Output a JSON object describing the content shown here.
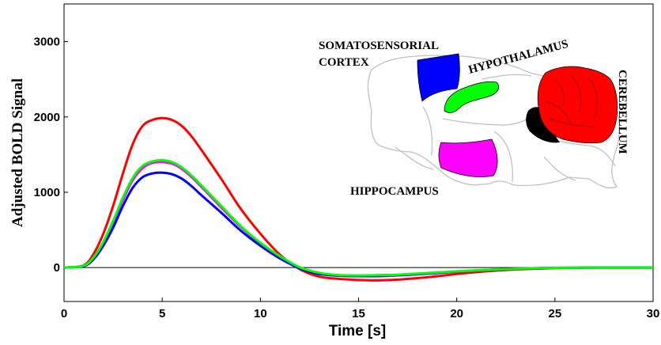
{
  "chart_data": {
    "type": "line",
    "xlabel": "Time [s]",
    "ylabel": "Adjusted BOLD Signal",
    "xlim": [
      0,
      30
    ],
    "ylim": [
      -450,
      3500
    ],
    "xticks": [
      0,
      5,
      10,
      15,
      20,
      25,
      30
    ],
    "yticks": [
      0,
      1000,
      2000,
      3000
    ],
    "grid": false,
    "x": [
      0,
      1,
      1.5,
      2,
      2.5,
      3,
      3.5,
      4,
      4.5,
      5,
      5.5,
      6,
      6.5,
      7,
      8,
      9,
      10,
      11,
      12,
      13,
      14,
      15,
      16,
      17,
      18,
      19,
      20,
      21,
      22,
      23,
      24,
      25,
      26,
      27,
      28,
      29,
      30
    ],
    "series": [
      {
        "color": "#ff0000",
        "values": [
          0,
          30,
          180,
          450,
          820,
          1250,
          1640,
          1880,
          1960,
          1985,
          1960,
          1880,
          1740,
          1560,
          1180,
          780,
          450,
          170,
          -20,
          -120,
          -150,
          -165,
          -170,
          -160,
          -140,
          -115,
          -85,
          -60,
          -40,
          -25,
          -15,
          -8,
          -4,
          0,
          0,
          0,
          0
        ]
      },
      {
        "color": "#ff00ff",
        "values": [
          0,
          25,
          130,
          330,
          600,
          900,
          1160,
          1320,
          1390,
          1400,
          1380,
          1310,
          1200,
          1070,
          800,
          540,
          320,
          140,
          0,
          -80,
          -110,
          -115,
          -115,
          -105,
          -90,
          -75,
          -55,
          -40,
          -28,
          -18,
          -10,
          -5,
          -2,
          0,
          0,
          0,
          0
        ]
      },
      {
        "color": "#0000ff",
        "values": [
          0,
          20,
          110,
          290,
          530,
          820,
          1060,
          1200,
          1250,
          1260,
          1240,
          1180,
          1080,
          960,
          730,
          490,
          290,
          120,
          -10,
          -85,
          -105,
          -110,
          -105,
          -100,
          -85,
          -70,
          -52,
          -38,
          -26,
          -16,
          -9,
          -4,
          -2,
          0,
          0,
          0,
          0
        ]
      },
      {
        "color": "#00ff00",
        "values": [
          0,
          25,
          135,
          340,
          620,
          930,
          1190,
          1350,
          1410,
          1425,
          1400,
          1330,
          1220,
          1090,
          820,
          550,
          330,
          150,
          5,
          -70,
          -100,
          -105,
          -100,
          -95,
          -80,
          -65,
          -50,
          -36,
          -25,
          -15,
          -8,
          -4,
          -2,
          0,
          0,
          0,
          0
        ]
      }
    ]
  },
  "inset": {
    "regions": [
      {
        "label": "SOMATOSENSORIAL",
        "color": "#0000ff"
      },
      {
        "label": "CORTEX",
        "color": "#0000ff"
      },
      {
        "label": "HYPOTHALAMUS",
        "color": "#00ff00"
      },
      {
        "label": "HIPPOCAMPUS",
        "color": "#ff00ff"
      },
      {
        "label": "CEREBELLUM",
        "color": "#ff0000"
      }
    ]
  }
}
